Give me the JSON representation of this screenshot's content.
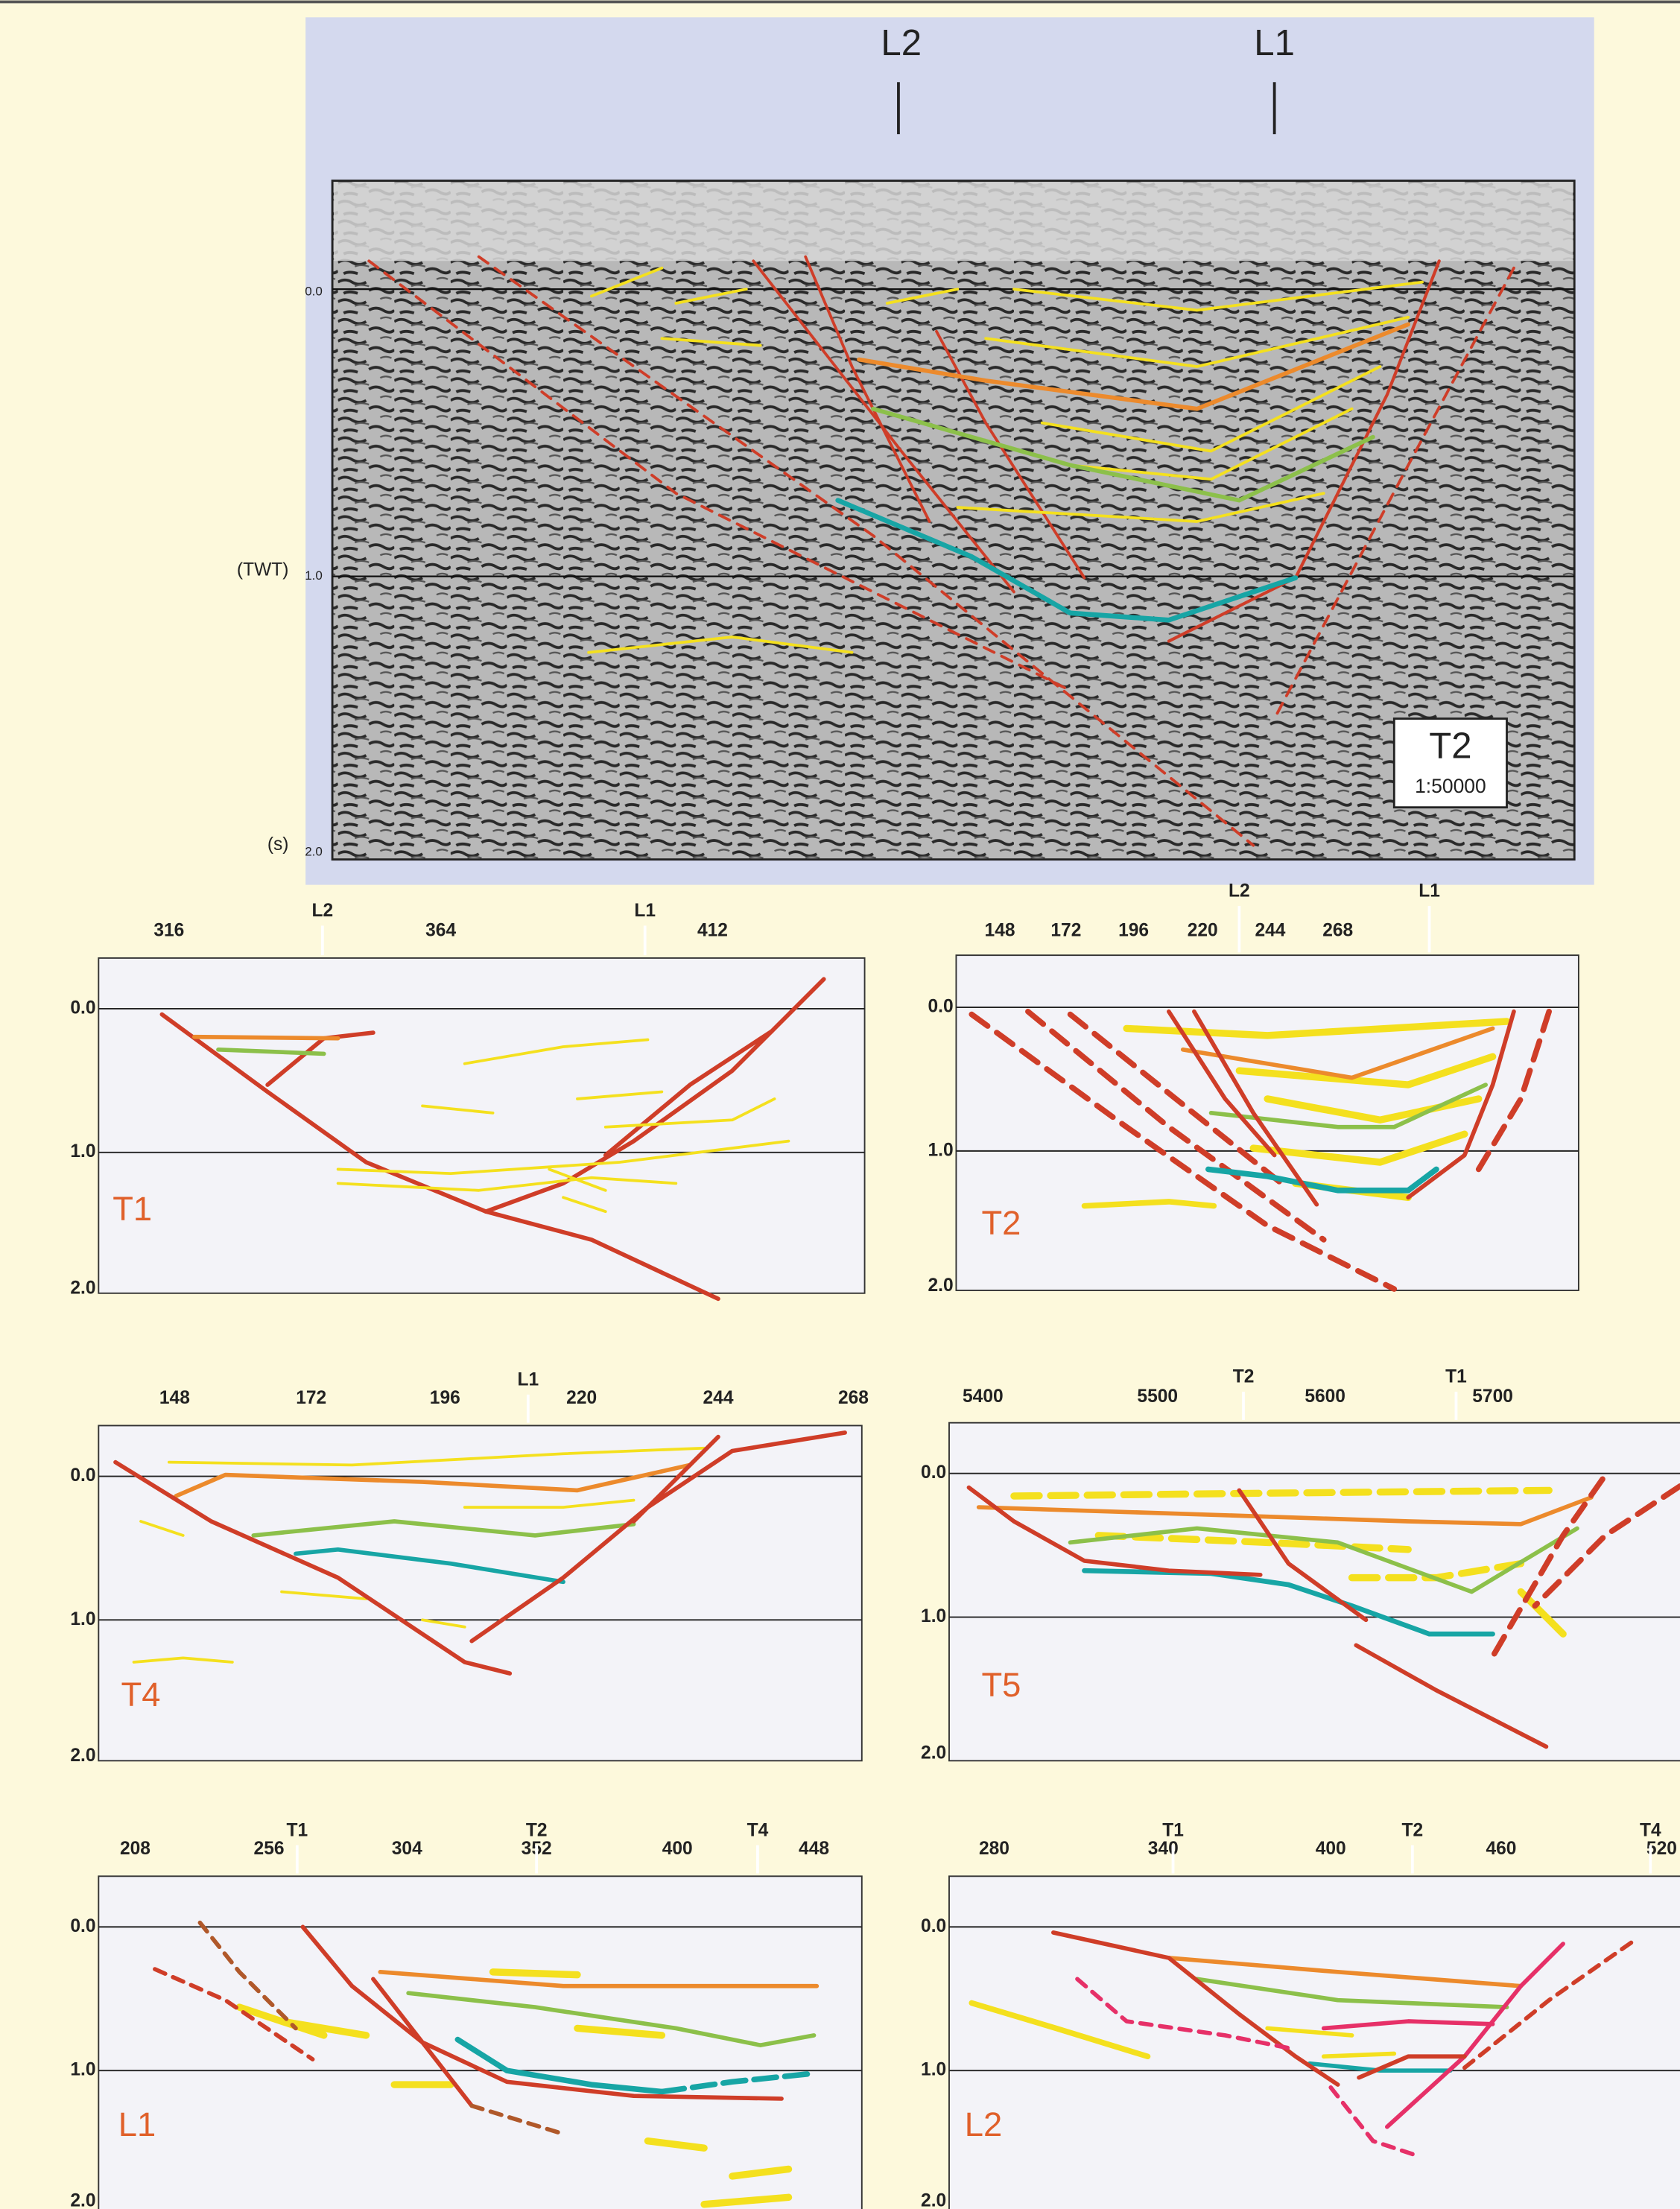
{
  "main_section": {
    "intersections": [
      "L2",
      "L1"
    ],
    "y_axis": {
      "label": "(TWT)",
      "unit": "(s)",
      "ticks": [
        "0.0",
        "1.0",
        "2.0"
      ]
    },
    "stamp": {
      "title": "T2",
      "scale": "1:50000"
    }
  },
  "panels": [
    {
      "title": "T1",
      "x_ticks": [
        "316",
        "364",
        "412"
      ],
      "intersections": [
        "L2",
        "L1"
      ],
      "y_ticks": [
        "0.0",
        "1.0",
        "2.0"
      ]
    },
    {
      "title": "T2",
      "x_ticks": [
        "148",
        "172",
        "196",
        "220",
        "244",
        "268"
      ],
      "intersections": [
        "L2",
        "L1"
      ],
      "y_ticks": [
        "0.0",
        "1.0",
        "2.0"
      ]
    },
    {
      "title": "T4",
      "x_ticks": [
        "148",
        "172",
        "196",
        "220",
        "244",
        "268"
      ],
      "intersections": [
        "L1"
      ],
      "y_ticks": [
        "0.0",
        "1.0",
        "2.0"
      ]
    },
    {
      "title": "T5",
      "x_ticks": [
        "5400",
        "5500",
        "5600",
        "5700"
      ],
      "intersections": [
        "T2",
        "T1"
      ],
      "y_ticks": [
        "0.0",
        "1.0",
        "2.0"
      ]
    },
    {
      "title": "L1",
      "x_ticks": [
        "208",
        "256",
        "304",
        "352",
        "400",
        "448"
      ],
      "intersections": [
        "T1",
        "T2",
        "T4"
      ],
      "y_ticks": [
        "0.0",
        "1.0",
        "2.0"
      ]
    },
    {
      "title": "L2",
      "x_ticks": [
        "280",
        "340",
        "400",
        "460",
        "520"
      ],
      "intersections": [
        "T1",
        "T2",
        "T4"
      ],
      "y_ticks": [
        "0.0",
        "1.0",
        "2.0"
      ]
    }
  ]
}
